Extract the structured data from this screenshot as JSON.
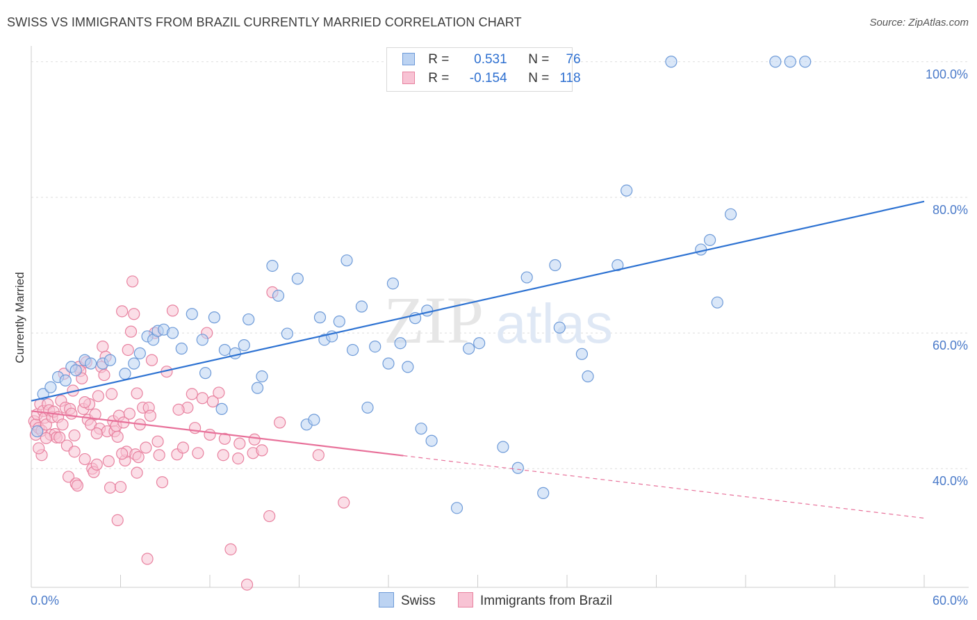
{
  "title": "SWISS VS IMMIGRANTS FROM BRAZIL CURRENTLY MARRIED CORRELATION CHART",
  "source": "Source: ZipAtlas.com",
  "watermark": {
    "zip": "ZIP",
    "atlas": "atlas"
  },
  "colors": {
    "swiss_fill": "#bcd3f2",
    "swiss_stroke": "#6d9ad8",
    "swiss_line": "#2d72d2",
    "brazil_fill": "#f8c3d4",
    "brazil_stroke": "#e8819f",
    "brazil_line": "#e8719a",
    "tick_text": "#4a7ac9"
  },
  "legend": {
    "rows": [
      {
        "r_label": "R =",
        "r_value": "0.531",
        "n_label": "N =",
        "n_value": "76"
      },
      {
        "r_label": "R =",
        "r_value": "-0.154",
        "n_label": "N =",
        "n_value": "118"
      }
    ]
  },
  "bottom_legend": [
    "Swiss",
    "Immigrants from Brazil"
  ],
  "chart_data": {
    "type": "scatter",
    "xlabel": "",
    "ylabel": "Currently Married",
    "xlim": [
      0,
      60
    ],
    "ylim": [
      22.5,
      101
    ],
    "x_tick_labels": [
      "0.0%",
      "60.0%"
    ],
    "y_ticks": [
      40,
      60,
      80,
      100
    ],
    "y_tick_labels": [
      "40.0%",
      "60.0%",
      "80.0%",
      "100.0%"
    ],
    "grid": "horizontal dashed",
    "legend_position": "top-center",
    "series": [
      {
        "name": "Swiss",
        "trend": {
          "x": [
            0,
            60
          ],
          "y": [
            50.0,
            79.4
          ],
          "dashed_from": null
        },
        "points": [
          [
            0.4,
            45.5
          ],
          [
            0.8,
            51.0
          ],
          [
            1.3,
            52.0
          ],
          [
            1.8,
            53.5
          ],
          [
            2.3,
            53.0
          ],
          [
            2.7,
            55.0
          ],
          [
            3.0,
            54.5
          ],
          [
            3.6,
            56.0
          ],
          [
            4.0,
            55.5
          ],
          [
            4.8,
            55.5
          ],
          [
            5.3,
            56.0
          ],
          [
            6.3,
            54.0
          ],
          [
            6.9,
            55.5
          ],
          [
            7.3,
            57.0
          ],
          [
            7.8,
            59.5
          ],
          [
            8.2,
            59.0
          ],
          [
            8.5,
            60.3
          ],
          [
            8.9,
            60.5
          ],
          [
            9.5,
            60.0
          ],
          [
            10.1,
            57.7
          ],
          [
            10.8,
            62.8
          ],
          [
            11.5,
            59.0
          ],
          [
            11.7,
            54.1
          ],
          [
            12.3,
            62.3
          ],
          [
            12.8,
            48.8
          ],
          [
            13.0,
            57.5
          ],
          [
            13.7,
            57.0
          ],
          [
            14.3,
            58.2
          ],
          [
            14.6,
            62.0
          ],
          [
            15.2,
            51.9
          ],
          [
            15.5,
            53.6
          ],
          [
            16.2,
            69.9
          ],
          [
            16.6,
            65.5
          ],
          [
            17.2,
            59.9
          ],
          [
            17.9,
            68.0
          ],
          [
            18.5,
            46.5
          ],
          [
            19.0,
            47.2
          ],
          [
            19.4,
            62.3
          ],
          [
            19.7,
            59.0
          ],
          [
            20.2,
            59.5
          ],
          [
            20.7,
            61.7
          ],
          [
            21.2,
            70.7
          ],
          [
            21.6,
            57.5
          ],
          [
            22.2,
            63.9
          ],
          [
            22.6,
            49.0
          ],
          [
            23.1,
            58.0
          ],
          [
            24.0,
            55.5
          ],
          [
            24.3,
            67.3
          ],
          [
            24.8,
            58.5
          ],
          [
            25.3,
            55.0
          ],
          [
            25.8,
            62.2
          ],
          [
            26.2,
            45.9
          ],
          [
            26.6,
            63.3
          ],
          [
            26.9,
            44.1
          ],
          [
            28.6,
            34.2
          ],
          [
            29.4,
            57.7
          ],
          [
            30.1,
            58.5
          ],
          [
            31.7,
            43.2
          ],
          [
            32.7,
            40.1
          ],
          [
            33.3,
            68.2
          ],
          [
            34.4,
            36.4
          ],
          [
            35.2,
            70.0
          ],
          [
            35.5,
            60.8
          ],
          [
            37.0,
            56.9
          ],
          [
            37.4,
            53.6
          ],
          [
            39.4,
            70.0
          ],
          [
            40.0,
            81.0
          ],
          [
            43.0,
            100.0
          ],
          [
            45.0,
            72.3
          ],
          [
            45.6,
            73.7
          ],
          [
            46.1,
            64.5
          ],
          [
            47.0,
            77.5
          ],
          [
            50.0,
            100.0
          ],
          [
            51.0,
            100.0
          ],
          [
            52.0,
            100.0
          ]
        ]
      },
      {
        "name": "Immigrants from Brazil",
        "trend": {
          "x": [
            0,
            60
          ],
          "y": [
            48.5,
            32.7
          ],
          "dashed_from": 25
        },
        "points": [
          [
            0.2,
            47.0
          ],
          [
            0.3,
            45.0
          ],
          [
            0.3,
            46.5
          ],
          [
            0.4,
            48.0
          ],
          [
            0.5,
            46.0
          ],
          [
            0.6,
            49.5
          ],
          [
            0.7,
            42.0
          ],
          [
            0.7,
            45.6
          ],
          [
            0.8,
            48.5
          ],
          [
            0.9,
            47.5
          ],
          [
            1.0,
            46.5
          ],
          [
            1.1,
            49.5
          ],
          [
            1.2,
            48.6
          ],
          [
            1.3,
            45.0
          ],
          [
            1.4,
            47.6
          ],
          [
            1.5,
            48.4
          ],
          [
            1.6,
            45.1
          ],
          [
            1.7,
            44.6
          ],
          [
            1.8,
            47.6
          ],
          [
            1.9,
            44.6
          ],
          [
            2.0,
            50.0
          ],
          [
            2.1,
            46.5
          ],
          [
            2.2,
            54.0
          ],
          [
            2.3,
            49.0
          ],
          [
            2.4,
            43.4
          ],
          [
            2.5,
            38.8
          ],
          [
            2.6,
            48.8
          ],
          [
            2.7,
            48.1
          ],
          [
            2.8,
            51.5
          ],
          [
            2.9,
            44.9
          ],
          [
            3.0,
            37.8
          ],
          [
            3.1,
            37.5
          ],
          [
            3.2,
            55.0
          ],
          [
            3.3,
            54.4
          ],
          [
            3.4,
            53.3
          ],
          [
            3.5,
            48.8
          ],
          [
            3.6,
            41.4
          ],
          [
            3.7,
            55.7
          ],
          [
            3.8,
            47.2
          ],
          [
            3.9,
            49.5
          ],
          [
            4.0,
            46.5
          ],
          [
            4.1,
            40.0
          ],
          [
            4.2,
            39.5
          ],
          [
            4.3,
            48.0
          ],
          [
            4.4,
            40.6
          ],
          [
            4.5,
            50.7
          ],
          [
            4.6,
            45.9
          ],
          [
            4.7,
            55.0
          ],
          [
            4.8,
            58.0
          ],
          [
            4.9,
            53.8
          ],
          [
            5.0,
            56.5
          ],
          [
            5.1,
            45.5
          ],
          [
            5.2,
            41.1
          ],
          [
            5.3,
            37.2
          ],
          [
            5.4,
            51.0
          ],
          [
            5.5,
            47.0
          ],
          [
            5.6,
            45.5
          ],
          [
            5.7,
            46.3
          ],
          [
            5.8,
            32.4
          ],
          [
            5.9,
            47.8
          ],
          [
            6.0,
            37.3
          ],
          [
            6.1,
            63.2
          ],
          [
            6.2,
            46.8
          ],
          [
            6.3,
            41.2
          ],
          [
            6.4,
            42.5
          ],
          [
            6.5,
            57.5
          ],
          [
            6.6,
            48.1
          ],
          [
            6.7,
            60.2
          ],
          [
            6.8,
            67.6
          ],
          [
            6.9,
            62.8
          ],
          [
            7.0,
            42.1
          ],
          [
            7.1,
            51.1
          ],
          [
            7.2,
            41.7
          ],
          [
            7.3,
            46.5
          ],
          [
            7.5,
            49.0
          ],
          [
            7.7,
            43.1
          ],
          [
            7.8,
            26.7
          ],
          [
            7.9,
            49.0
          ],
          [
            8.0,
            47.8
          ],
          [
            8.1,
            56.0
          ],
          [
            8.3,
            60.0
          ],
          [
            8.6,
            42.0
          ],
          [
            8.8,
            38.0
          ],
          [
            9.1,
            54.3
          ],
          [
            9.5,
            63.3
          ],
          [
            9.8,
            42.1
          ],
          [
            10.2,
            43.1
          ],
          [
            10.5,
            49.0
          ],
          [
            10.8,
            51.0
          ],
          [
            11.2,
            42.3
          ],
          [
            11.5,
            50.4
          ],
          [
            11.8,
            60.0
          ],
          [
            12.2,
            49.9
          ],
          [
            12.6,
            51.2
          ],
          [
            12.9,
            42.0
          ],
          [
            13.4,
            28.1
          ],
          [
            13.9,
            41.5
          ],
          [
            14.5,
            22.9
          ],
          [
            14.9,
            42.3
          ],
          [
            15.5,
            42.7
          ],
          [
            16.2,
            66.0
          ],
          [
            16.7,
            46.8
          ],
          [
            16.0,
            33.0
          ],
          [
            19.3,
            42.0
          ],
          [
            21.0,
            35.0
          ],
          [
            0.5,
            43.0
          ],
          [
            1.0,
            44.5
          ],
          [
            2.9,
            42.5
          ],
          [
            3.6,
            49.8
          ],
          [
            4.4,
            45.2
          ],
          [
            5.8,
            44.7
          ],
          [
            6.1,
            42.2
          ],
          [
            7.1,
            39.4
          ],
          [
            8.5,
            44.0
          ],
          [
            9.9,
            48.7
          ],
          [
            11.0,
            46.0
          ],
          [
            12.0,
            45.0
          ],
          [
            13.0,
            44.4
          ],
          [
            14.0,
            43.7
          ],
          [
            15.0,
            44.3
          ]
        ]
      }
    ]
  }
}
